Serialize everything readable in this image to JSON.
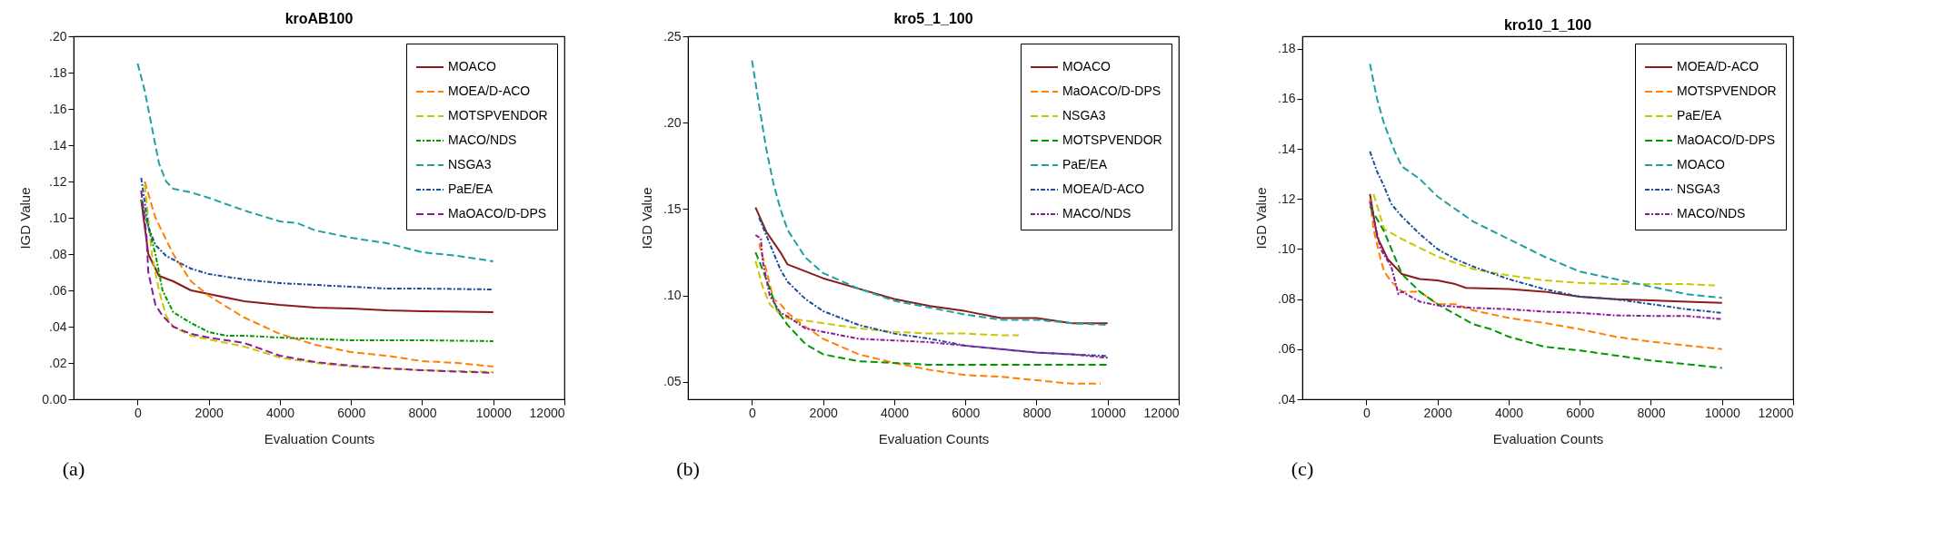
{
  "chart_data": [
    {
      "type": "line",
      "title": "kroAB100",
      "xlabel": "Evaluation Counts",
      "ylabel": "IGD Value",
      "annotations": [
        "(a)"
      ],
      "xlim": [
        -1800,
        12000
      ],
      "xticks": [
        0,
        2000,
        4000,
        6000,
        8000,
        10000,
        12000
      ],
      "ylim": [
        0,
        0.2
      ],
      "yticks": [
        {
          "value": 0,
          "label": "0.00"
        },
        {
          "value": 0.02,
          "label": ".02"
        },
        {
          "value": 0.04,
          "label": ".04"
        },
        {
          "value": 0.06,
          "label": ".06"
        },
        {
          "value": 0.08,
          "label": ".08"
        },
        {
          "value": 0.1,
          "label": ".10"
        },
        {
          "value": 0.12,
          "label": ".12"
        },
        {
          "value": 0.14,
          "label": ".14"
        },
        {
          "value": 0.16,
          "label": ".16"
        },
        {
          "value": 0.18,
          "label": ".18"
        },
        {
          "value": 0.2,
          "label": ".20"
        }
      ],
      "legend": "top right",
      "grid": false,
      "series": [
        {
          "name": "MOACO",
          "color": "#8b1a1a",
          "line_style": "solid",
          "x": [
            100,
            300,
            600,
            1000,
            1500,
            2000,
            3000,
            4000,
            5000,
            6000,
            7000,
            8000,
            10000
          ],
          "values": [
            0.11,
            0.08,
            0.068,
            0.065,
            0.06,
            0.058,
            0.054,
            0.052,
            0.0505,
            0.05,
            0.049,
            0.0485,
            0.048
          ]
        },
        {
          "name": "MOEA/D-ACO",
          "color": "#ff8000",
          "line_style": "dashed",
          "x": [
            200,
            500,
            1000,
            1500,
            2000,
            3000,
            4000,
            5000,
            6000,
            7000,
            8000,
            9000,
            10000
          ],
          "values": [
            0.12,
            0.1,
            0.08,
            0.065,
            0.057,
            0.045,
            0.036,
            0.03,
            0.026,
            0.024,
            0.021,
            0.02,
            0.018
          ]
        },
        {
          "name": "MOTSPVENDOR",
          "color": "#c8c800",
          "line_style": "dashed",
          "x": [
            200,
            300,
            400,
            600,
            800,
            1000,
            1500,
            2000,
            3000,
            4000,
            5000,
            6000,
            7000,
            8000,
            10000
          ],
          "values": [
            0.118,
            0.1,
            0.08,
            0.06,
            0.046,
            0.04,
            0.035,
            0.033,
            0.029,
            0.023,
            0.02,
            0.018,
            0.017,
            0.016,
            0.015
          ]
        },
        {
          "name": "MACO/NDS",
          "color": "#009900",
          "line_style": "dotted",
          "x": [
            100,
            300,
            500,
            700,
            1000,
            1500,
            2000,
            2500,
            3000,
            4000,
            6000,
            8000,
            10000
          ],
          "values": [
            0.11,
            0.095,
            0.08,
            0.06,
            0.048,
            0.042,
            0.037,
            0.035,
            0.035,
            0.034,
            0.0325,
            0.0325,
            0.032
          ]
        },
        {
          "name": "NSGA3",
          "color": "#20a0a0",
          "line_style": "dashed",
          "x": [
            0,
            200,
            400,
            600,
            800,
            1000,
            1500,
            2000,
            3000,
            4000,
            4500,
            5000,
            6000,
            7000,
            8000,
            9000,
            10000
          ],
          "values": [
            0.185,
            0.17,
            0.15,
            0.13,
            0.12,
            0.116,
            0.114,
            0.111,
            0.104,
            0.098,
            0.097,
            0.093,
            0.089,
            0.086,
            0.081,
            0.079,
            0.076
          ]
        },
        {
          "name": "PaE/EA",
          "color": "#1f4e9c",
          "line_style": "dotted",
          "x": [
            100,
            300,
            500,
            800,
            1000,
            1500,
            2000,
            3000,
            4000,
            5000,
            6000,
            7000,
            8000,
            10000
          ],
          "values": [
            0.122,
            0.095,
            0.085,
            0.079,
            0.077,
            0.072,
            0.069,
            0.066,
            0.064,
            0.063,
            0.062,
            0.061,
            0.061,
            0.0605
          ]
        },
        {
          "name": "MaOACO/D-DPS",
          "color": "#8b1a9b",
          "line_style": "dashed",
          "x": [
            100,
            250,
            300,
            500,
            700,
            1000,
            1500,
            2000,
            3000,
            4000,
            5000,
            6000,
            7000,
            8000,
            10000
          ],
          "values": [
            0.115,
            0.09,
            0.07,
            0.052,
            0.046,
            0.04,
            0.036,
            0.034,
            0.031,
            0.024,
            0.0205,
            0.0185,
            0.017,
            0.016,
            0.0145
          ]
        }
      ]
    },
    {
      "type": "line",
      "title": "kro5_1_100",
      "xlabel": "Evaluation Counts",
      "ylabel": "IGD Value",
      "annotations": [
        "(b)"
      ],
      "xlim": [
        -1800,
        12000
      ],
      "xticks": [
        0,
        2000,
        4000,
        6000,
        8000,
        10000,
        12000
      ],
      "ylim": [
        0.04,
        0.25
      ],
      "yticks": [
        {
          "value": 0.05,
          "label": ".05"
        },
        {
          "value": 0.1,
          "label": ".10"
        },
        {
          "value": 0.15,
          "label": ".15"
        },
        {
          "value": 0.2,
          "label": ".20"
        },
        {
          "value": 0.25,
          "label": ".25"
        }
      ],
      "legend": "top right",
      "grid": false,
      "series": [
        {
          "name": "MOACO",
          "color": "#8b1a1a",
          "line_style": "solid",
          "x": [
            100,
            400,
            800,
            1000,
            2000,
            3000,
            4000,
            5000,
            6000,
            7000,
            8000,
            9000,
            10000
          ],
          "values": [
            0.151,
            0.137,
            0.125,
            0.118,
            0.11,
            0.104,
            0.098,
            0.094,
            0.091,
            0.087,
            0.087,
            0.084,
            0.084
          ]
        },
        {
          "name": "MaOACO/D-DPS",
          "color": "#ff8000",
          "line_style": "dashed",
          "x": [
            200,
            400,
            600,
            800,
            1000,
            1500,
            2000,
            3000,
            4000,
            5000,
            6000,
            7000,
            8000,
            9000,
            9800
          ],
          "values": [
            0.13,
            0.115,
            0.098,
            0.095,
            0.09,
            0.082,
            0.075,
            0.066,
            0.061,
            0.057,
            0.054,
            0.053,
            0.051,
            0.049,
            0.049
          ]
        },
        {
          "name": "NSGA3",
          "color": "#c8c800",
          "line_style": "dashed",
          "x": [
            100,
            300,
            500,
            800,
            1000,
            2000,
            3000,
            4000,
            5000,
            6000,
            7000,
            7500
          ],
          "values": [
            0.12,
            0.105,
            0.095,
            0.089,
            0.087,
            0.084,
            0.081,
            0.079,
            0.078,
            0.078,
            0.077,
            0.077
          ]
        },
        {
          "name": "MOTSPVENDOR",
          "color": "#009900",
          "line_style": "dashed",
          "x": [
            100,
            300,
            500,
            700,
            1000,
            1500,
            2000,
            3000,
            4000,
            5000,
            6000,
            8000,
            10000
          ],
          "values": [
            0.125,
            0.115,
            0.104,
            0.092,
            0.083,
            0.072,
            0.066,
            0.062,
            0.061,
            0.06,
            0.06,
            0.06,
            0.06
          ]
        },
        {
          "name": "PaE/EA",
          "color": "#20a0a0",
          "line_style": "dashed",
          "x": [
            0,
            200,
            400,
            600,
            800,
            1000,
            1500,
            2000,
            3000,
            4000,
            5000,
            6000,
            7000,
            8000,
            9000,
            10000
          ],
          "values": [
            0.236,
            0.21,
            0.185,
            0.165,
            0.15,
            0.138,
            0.122,
            0.113,
            0.104,
            0.097,
            0.093,
            0.089,
            0.086,
            0.086,
            0.084,
            0.083
          ]
        },
        {
          "name": "MOEA/D-ACO",
          "color": "#1f4e9c",
          "line_style": "dotted",
          "x": [
            200,
            500,
            800,
            1000,
            1500,
            2000,
            3000,
            4000,
            5000,
            6000,
            7000,
            8000,
            9000,
            10000
          ],
          "values": [
            0.145,
            0.13,
            0.115,
            0.108,
            0.098,
            0.091,
            0.083,
            0.078,
            0.075,
            0.071,
            0.069,
            0.067,
            0.066,
            0.065
          ]
        },
        {
          "name": "MACO/NDS",
          "color": "#8b1a9b",
          "line_style": "dotted",
          "x": [
            100,
            250,
            300,
            500,
            800,
            1000,
            1500,
            2000,
            3000,
            4000,
            5000,
            6000,
            7000,
            8000,
            9000,
            10000
          ],
          "values": [
            0.135,
            0.133,
            0.12,
            0.1,
            0.09,
            0.088,
            0.081,
            0.079,
            0.075,
            0.074,
            0.073,
            0.071,
            0.069,
            0.067,
            0.066,
            0.064
          ]
        }
      ]
    },
    {
      "type": "line",
      "title": "kro10_1_100",
      "xlabel": "Evaluation Counts",
      "ylabel": "IGD Value",
      "annotations": [
        "(c)"
      ],
      "xlim": [
        -1800,
        12000
      ],
      "xticks": [
        0,
        2000,
        4000,
        6000,
        8000,
        10000,
        12000
      ],
      "ylim": [
        0.04,
        0.185
      ],
      "yticks": [
        {
          "value": 0.04,
          "label": ".04"
        },
        {
          "value": 0.06,
          "label": ".06"
        },
        {
          "value": 0.08,
          "label": ".08"
        },
        {
          "value": 0.1,
          "label": ".10"
        },
        {
          "value": 0.12,
          "label": ".12"
        },
        {
          "value": 0.14,
          "label": ".14"
        },
        {
          "value": 0.16,
          "label": ".16"
        },
        {
          "value": 0.18,
          "label": ".18"
        }
      ],
      "legend": "top right",
      "grid": false,
      "series": [
        {
          "name": "MOEA/D-ACO",
          "color": "#8b1a1a",
          "line_style": "solid",
          "x": [
            100,
            300,
            600,
            1000,
            1500,
            2000,
            2500,
            2800,
            4000,
            5000,
            6000,
            7000,
            8000,
            9000,
            10000
          ],
          "values": [
            0.122,
            0.105,
            0.096,
            0.09,
            0.088,
            0.0875,
            0.086,
            0.0845,
            0.084,
            0.083,
            0.081,
            0.08,
            0.0795,
            0.079,
            0.0785
          ]
        },
        {
          "name": "MOTSPVENDOR",
          "color": "#ff8000",
          "line_style": "dashed",
          "x": [
            100,
            200,
            400,
            500,
            700,
            1000,
            1500,
            2000,
            2500,
            3000,
            4000,
            5000,
            6000,
            7000,
            8000,
            9000,
            10000
          ],
          "values": [
            0.12,
            0.108,
            0.096,
            0.091,
            0.087,
            0.083,
            0.083,
            0.078,
            0.078,
            0.0755,
            0.0725,
            0.0705,
            0.068,
            0.065,
            0.063,
            0.0615,
            0.06
          ]
        },
        {
          "name": "PaE/EA",
          "color": "#c8c800",
          "line_style": "dashed",
          "x": [
            200,
            500,
            1000,
            2000,
            3000,
            4000,
            5000,
            6000,
            7000,
            8000,
            9000,
            9800
          ],
          "values": [
            0.122,
            0.108,
            0.104,
            0.097,
            0.092,
            0.0895,
            0.0875,
            0.0865,
            0.086,
            0.086,
            0.086,
            0.0855
          ]
        },
        {
          "name": "MaOACO/D-DPS",
          "color": "#009900",
          "line_style": "dashed",
          "x": [
            100,
            500,
            1000,
            1500,
            2000,
            2500,
            3000,
            3500,
            4000,
            5000,
            6000,
            7000,
            8000,
            9000,
            10000
          ],
          "values": [
            0.117,
            0.107,
            0.09,
            0.083,
            0.078,
            0.074,
            0.07,
            0.068,
            0.065,
            0.061,
            0.0595,
            0.0575,
            0.0555,
            0.054,
            0.0525
          ]
        },
        {
          "name": "MOACO",
          "color": "#20a0a0",
          "line_style": "dashed",
          "x": [
            100,
            300,
            500,
            800,
            1000,
            1500,
            2000,
            3000,
            4000,
            5000,
            6000,
            7000,
            8000,
            9000,
            10000
          ],
          "values": [
            0.174,
            0.16,
            0.15,
            0.139,
            0.133,
            0.128,
            0.121,
            0.111,
            0.104,
            0.097,
            0.091,
            0.088,
            0.085,
            0.082,
            0.0805
          ]
        },
        {
          "name": "NSGA3",
          "color": "#1f4e9c",
          "line_style": "dotted",
          "x": [
            100,
            300,
            500,
            700,
            1000,
            1500,
            2000,
            2500,
            3000,
            4000,
            5000,
            6000,
            7000,
            8000,
            9000,
            10000
          ],
          "values": [
            0.139,
            0.131,
            0.125,
            0.118,
            0.113,
            0.106,
            0.1,
            0.096,
            0.093,
            0.088,
            0.084,
            0.081,
            0.08,
            0.078,
            0.076,
            0.0745
          ]
        },
        {
          "name": "MACO/NDS",
          "color": "#8b1a9b",
          "line_style": "dotted",
          "x": [
            100,
            400,
            700,
            900,
            1000,
            1500,
            2000,
            3000,
            4000,
            5000,
            6000,
            7000,
            8000,
            9000,
            10000
          ],
          "values": [
            0.119,
            0.1,
            0.093,
            0.082,
            0.083,
            0.079,
            0.0775,
            0.0765,
            0.076,
            0.075,
            0.0745,
            0.0735,
            0.0733,
            0.0733,
            0.072
          ]
        }
      ]
    }
  ]
}
